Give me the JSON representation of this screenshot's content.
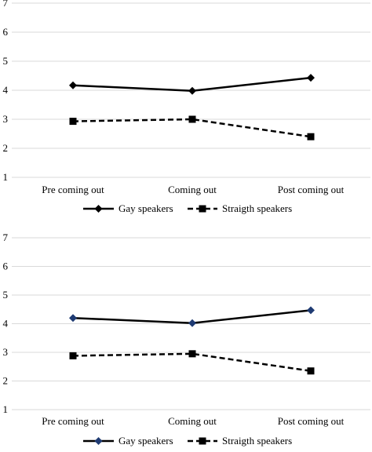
{
  "chart_data": [
    {
      "type": "line",
      "categories": [
        "Pre coming out",
        "Coming out",
        "Post coming out"
      ],
      "ylim": [
        1,
        7
      ],
      "yticks": [
        "1",
        "2",
        "3",
        "4",
        "5",
        "6",
        "7"
      ],
      "grid": true,
      "legend_position": "bottom",
      "series": [
        {
          "name": "Gay speakers",
          "values": [
            4.17,
            3.98,
            4.43
          ],
          "color": "#000000",
          "line_style": "solid",
          "marker": "diamond"
        },
        {
          "name": "Straigth speakers",
          "values": [
            2.93,
            3.0,
            2.4
          ],
          "color": "#000000",
          "line_style": "dashed",
          "marker": "square"
        }
      ]
    },
    {
      "type": "line",
      "categories": [
        "Pre coming out",
        "Coming out",
        "Post coming out"
      ],
      "ylim": [
        1,
        7
      ],
      "yticks": [
        "1",
        "2",
        "3",
        "4",
        "5",
        "6",
        "7"
      ],
      "grid": true,
      "legend_position": "bottom",
      "series": [
        {
          "name": "Gay speakers",
          "values": [
            4.2,
            4.02,
            4.47
          ],
          "color": "#000000",
          "line_style": "solid",
          "marker": "diamond",
          "marker_color": "#1f3b73"
        },
        {
          "name": "Straigth speakers",
          "values": [
            2.88,
            2.95,
            2.35
          ],
          "color": "#000000",
          "line_style": "dashed",
          "marker": "square"
        }
      ]
    }
  ]
}
